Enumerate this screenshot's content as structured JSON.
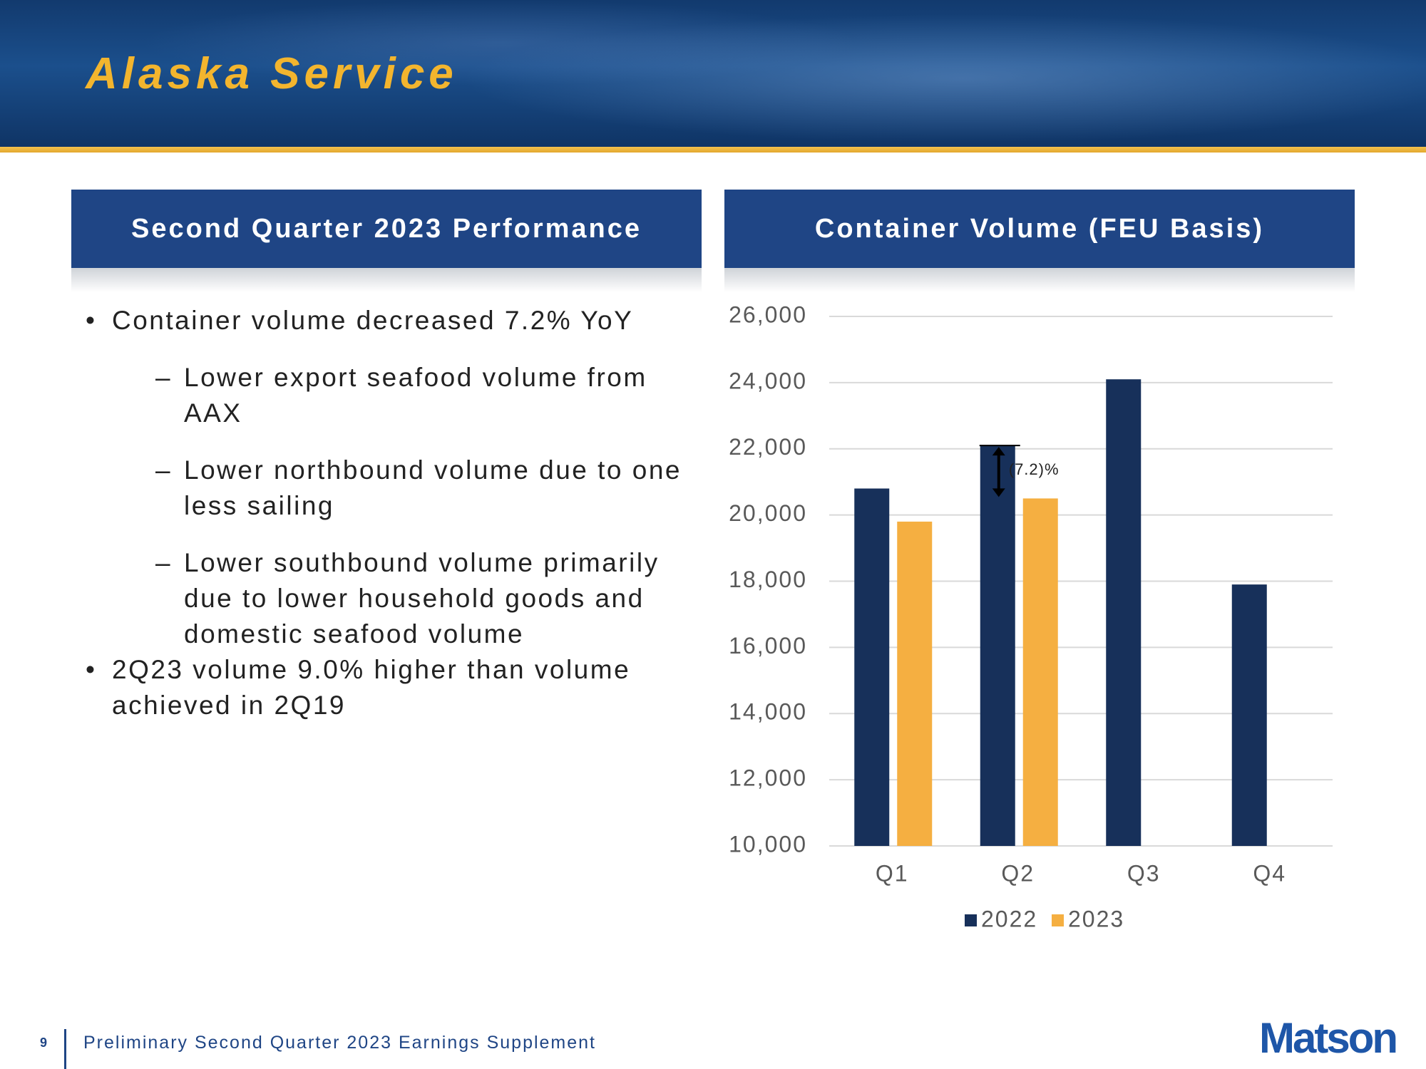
{
  "header": {
    "title": "Alaska Service"
  },
  "performance": {
    "heading": "Second Quarter 2023 Performance",
    "bullets": [
      {
        "text": "Container volume decreased 7.2% YoY",
        "sub": [
          "Lower export seafood volume from AAX",
          "Lower northbound volume due to one less sailing",
          "Lower southbound volume primarily due to lower household goods and domestic seafood volume"
        ]
      },
      {
        "text": "2Q23 volume 9.0% higher than volume achieved in 2Q19",
        "sub": []
      }
    ]
  },
  "chart_data": {
    "type": "bar",
    "title": "Container Volume (FEU Basis)",
    "categories": [
      "Q1",
      "Q2",
      "Q3",
      "Q4"
    ],
    "series": [
      {
        "name": "2022",
        "color": "#17305a",
        "values": [
          20800,
          22100,
          24100,
          17900
        ]
      },
      {
        "name": "2023",
        "color": "#f5af41",
        "values": [
          19800,
          20500,
          null,
          null
        ]
      }
    ],
    "ylim": [
      10000,
      26000
    ],
    "yticks": [
      {
        "value": 10000,
        "label": "10,000"
      },
      {
        "value": 12000,
        "label": "12,000"
      },
      {
        "value": 14000,
        "label": "14,000"
      },
      {
        "value": 16000,
        "label": "16,000"
      },
      {
        "value": 18000,
        "label": "18,000"
      },
      {
        "value": 20000,
        "label": "20,000"
      },
      {
        "value": 22000,
        "label": "22,000"
      },
      {
        "value": 24000,
        "label": "24,000"
      },
      {
        "value": 26000,
        "label": "26,000"
      }
    ],
    "grid": true,
    "legend": "bottom",
    "annotation": "(7.2)%"
  },
  "footer": {
    "page": "9",
    "text": "Preliminary Second Quarter 2023 Earnings Supplement",
    "logo": "Matson"
  }
}
